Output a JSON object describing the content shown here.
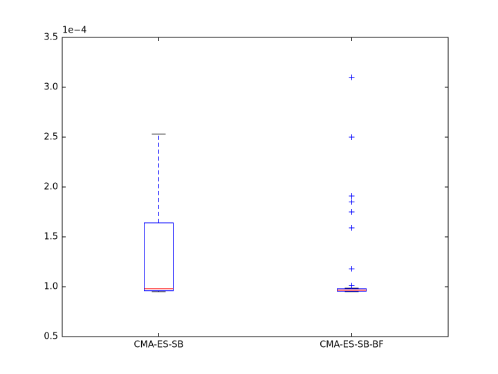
{
  "chart_data": {
    "type": "box",
    "categories": [
      "CMA-ES-SB",
      "CMA-ES-SB-BF"
    ],
    "scale_label": "1e−4",
    "ylim": [
      0.5,
      3.5
    ],
    "yticks": [
      {
        "value": 0.5,
        "label": "0.5"
      },
      {
        "value": 1.0,
        "label": "1.0"
      },
      {
        "value": 1.5,
        "label": "1.5"
      },
      {
        "value": 2.0,
        "label": "2.0"
      },
      {
        "value": 2.5,
        "label": "2.5"
      },
      {
        "value": 3.0,
        "label": "3.0"
      },
      {
        "value": 3.5,
        "label": "3.5"
      }
    ],
    "box_color": "#0000ff",
    "median_color": "#ff0000",
    "boxes": [
      {
        "whislo": 0.95,
        "q1": 0.96,
        "med": 0.98,
        "q3": 1.64,
        "whishi": 2.53,
        "fliers": []
      },
      {
        "whislo": 0.95,
        "q1": 0.955,
        "med": 0.965,
        "q3": 0.98,
        "whishi": 0.985,
        "fliers": [
          3.1,
          2.5,
          1.91,
          1.85,
          1.75,
          1.59,
          1.18,
          1.01
        ]
      }
    ]
  }
}
